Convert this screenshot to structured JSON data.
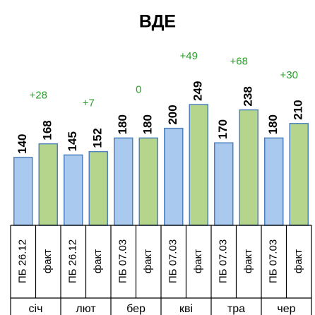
{
  "chart_data": {
    "type": "bar",
    "title": "ВДЕ",
    "categories": [
      "січ",
      "лют",
      "бер",
      "кві",
      "тра",
      "чер"
    ],
    "sublabels": [
      [
        "ПБ 26.12",
        "факт"
      ],
      [
        "ПБ 26.12",
        "факт"
      ],
      [
        "ПБ 07.03",
        "факт"
      ],
      [
        "ПБ 07.03",
        "факт"
      ],
      [
        "ПБ 07.03",
        "факт"
      ],
      [
        "ПБ 07.03",
        "факт"
      ]
    ],
    "series": [
      {
        "color": "#a9c9ee",
        "values": [
          140,
          145,
          180,
          200,
          170,
          180
        ]
      },
      {
        "color": "#b5d58c",
        "values": [
          168,
          152,
          180,
          249,
          238,
          210
        ]
      }
    ],
    "differences": {
      "color": "#2ca02c",
      "values": [
        28,
        7,
        0,
        49,
        68,
        30
      ],
      "value_labels": [
        "+28",
        "+7",
        "0",
        "+49",
        "+68",
        "+30"
      ]
    },
    "ylim": [
      0,
      300
    ]
  }
}
